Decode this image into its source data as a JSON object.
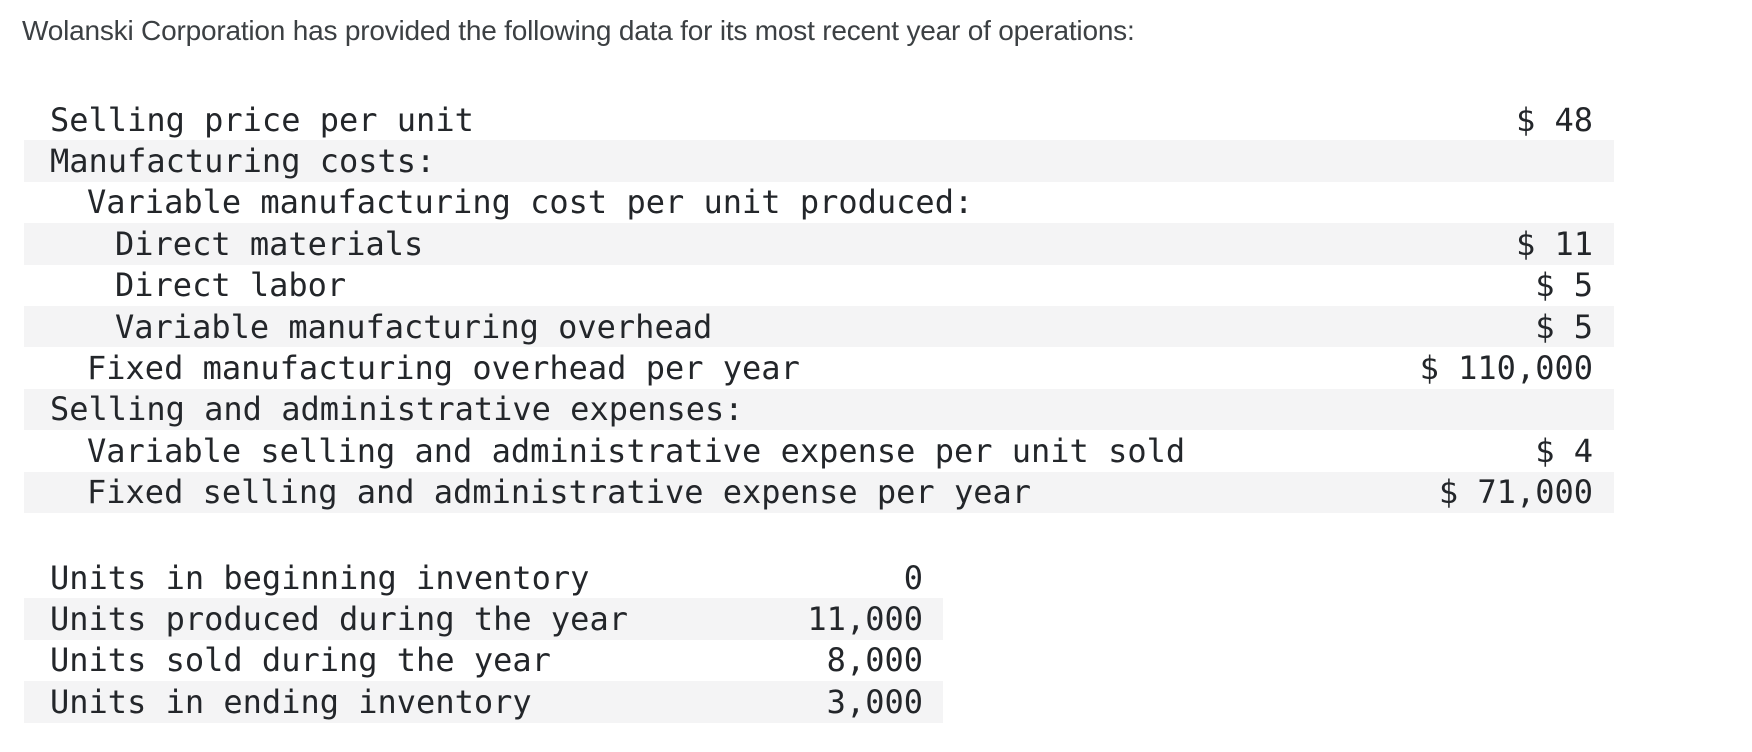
{
  "title": "Wolanski Corporation has provided the following data for its most recent year of operations:",
  "colors": {
    "row_alt": "#f4f4f5",
    "text": "#23262a",
    "title_text": "#3c4043"
  },
  "cost_table": {
    "rows": [
      {
        "label": "Selling price per unit",
        "indent": 0,
        "value": "$ 48",
        "shaded": false
      },
      {
        "label": "Manufacturing costs:",
        "indent": 0,
        "value": "",
        "shaded": true
      },
      {
        "label": "Variable manufacturing cost per unit produced:",
        "indent": 1,
        "value": "",
        "shaded": false
      },
      {
        "label": "Direct materials",
        "indent": 2,
        "value": "$ 11",
        "shaded": true
      },
      {
        "label": "Direct labor",
        "indent": 2,
        "value": "$ 5",
        "shaded": false
      },
      {
        "label": "Variable manufacturing overhead",
        "indent": 2,
        "value": "$ 5",
        "shaded": true
      },
      {
        "label": "Fixed manufacturing overhead per year",
        "indent": 1,
        "value": "$ 110,000",
        "shaded": false
      },
      {
        "label": "Selling and administrative expenses:",
        "indent": 0,
        "value": "",
        "shaded": true
      },
      {
        "label": "Variable selling and administrative expense per unit sold",
        "indent": 1,
        "value": "$ 4",
        "shaded": false
      },
      {
        "label": "Fixed selling and administrative expense per year",
        "indent": 1,
        "value": "$ 71,000",
        "shaded": true
      }
    ]
  },
  "units_table": {
    "rows": [
      {
        "label": "Units in beginning inventory",
        "indent": 0,
        "value": "0",
        "shaded": false
      },
      {
        "label": "Units produced during the year",
        "indent": 0,
        "value": "11,000",
        "shaded": true
      },
      {
        "label": "Units sold during the year",
        "indent": 0,
        "value": "8,000",
        "shaded": false
      },
      {
        "label": "Units in ending inventory",
        "indent": 0,
        "value": "3,000",
        "shaded": true
      }
    ]
  }
}
